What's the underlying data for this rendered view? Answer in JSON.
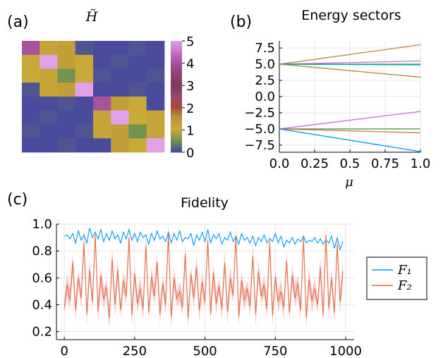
{
  "panels": {
    "a": {
      "label": "(a)",
      "title": "H̃",
      "chart_data": {
        "type": "heatmap",
        "title": "H̃",
        "z": [
          [
            4,
            1,
            1,
            0,
            0,
            0,
            0,
            0
          ],
          [
            1,
            5,
            1,
            1,
            0,
            0,
            0,
            0
          ],
          [
            1,
            1,
            3,
            1,
            0,
            0,
            0,
            0
          ],
          [
            0,
            1,
            1,
            5,
            0,
            0,
            0,
            0
          ],
          [
            0,
            0,
            0,
            0,
            4,
            1,
            1,
            0
          ],
          [
            0,
            0,
            0,
            0,
            1,
            5,
            1,
            1
          ],
          [
            0,
            0,
            0,
            0,
            1,
            1,
            3,
            1
          ],
          [
            0,
            0,
            0,
            0,
            0,
            1,
            1,
            5
          ]
        ],
        "shading": {
          "rows": [
            [
              0,
              3
            ],
            [
              1,
              4
            ],
            [
              0,
              1
            ],
            [
              0,
              0
            ],
            [
              0,
              0
            ],
            [
              0,
              0
            ],
            [
              0,
              1
            ],
            [
              0,
              3
            ]
          ],
          "note_values": [
            0,
            0.08,
            0.15
          ]
        },
        "colorbar": {
          "range": [
            0,
            5
          ],
          "ticks": [
            "0",
            "1",
            "2",
            "3",
            "4",
            "5"
          ]
        }
      }
    },
    "b": {
      "label": "(b)",
      "title": "Energy sectors",
      "chart_data": {
        "type": "line",
        "title": "Energy sectors",
        "xlabel": "μ",
        "xlim": [
          0,
          1
        ],
        "ylim": [
          -8.6,
          8.6
        ],
        "xticks": [
          "0.0",
          "0.25",
          "0.5",
          "0.75",
          "1.0"
        ],
        "yticks": [
          "7.5",
          "5.0",
          "2.5",
          "0.0",
          "−2.5",
          "−5.0",
          "−7.5"
        ],
        "series": [
          {
            "color": "#b8863b",
            "x": [
              0,
              1
            ],
            "y": [
              5,
              8
            ]
          },
          {
            "color": "#c271d2",
            "x": [
              0,
              1
            ],
            "y": [
              5,
              5.5
            ]
          },
          {
            "color": "#3da44d",
            "x": [
              0,
              1
            ],
            "y": [
              5,
              5
            ]
          },
          {
            "color": "#00a9ad",
            "x": [
              0,
              1
            ],
            "y": [
              5,
              4.9
            ]
          },
          {
            "color": "#b8863b",
            "x": [
              0,
              1
            ],
            "y": [
              5,
              3
            ]
          },
          {
            "color": "#c271d2",
            "x": [
              0,
              1
            ],
            "y": [
              -5,
              -2.3
            ]
          },
          {
            "color": "#3da44d",
            "x": [
              0,
              1
            ],
            "y": [
              -5,
              -5
            ]
          },
          {
            "color": "#e26f46",
            "x": [
              0,
              1
            ],
            "y": [
              -5,
              -5.6
            ]
          },
          {
            "color": "#009af9",
            "x": [
              0,
              1
            ],
            "y": [
              -5,
              -8.5
            ]
          }
        ]
      }
    },
    "c": {
      "label": "(c)",
      "title": "Fidelity",
      "chart_data": {
        "type": "line",
        "title": "Fidelity",
        "xlim": [
          -28,
          1030
        ],
        "ylim": [
          0.14,
          1.0
        ],
        "xticks": [
          "0",
          "250",
          "500",
          "750",
          "1000"
        ],
        "yticks": [
          "1.0",
          "0.8",
          "0.6",
          "0.4",
          "0.2"
        ],
        "legend_position": "right",
        "series": [
          {
            "name": "F₁",
            "color": "#009af9",
            "x": [
              0,
              10,
              20,
              30,
              40,
              50,
              60,
              70,
              80,
              90,
              100,
              110,
              120,
              130,
              140,
              150,
              160,
              170,
              180,
              190,
              200,
              210,
              220,
              230,
              240,
              250,
              260,
              270,
              280,
              290,
              300,
              310,
              320,
              330,
              340,
              350,
              360,
              370,
              380,
              390,
              400,
              410,
              420,
              430,
              440,
              450,
              460,
              470,
              480,
              490,
              500,
              510,
              520,
              530,
              540,
              550,
              560,
              570,
              580,
              590,
              600,
              610,
              620,
              630,
              640,
              650,
              660,
              670,
              680,
              690,
              700,
              710,
              720,
              730,
              740,
              750,
              760,
              770,
              780,
              790,
              800,
              810,
              820,
              830,
              840,
              850,
              860,
              870,
              880,
              890,
              900,
              910,
              920,
              930,
              940,
              950,
              960,
              970,
              980,
              990
            ],
            "y": [
              0.91,
              0.92,
              0.89,
              0.93,
              0.86,
              0.95,
              0.88,
              0.92,
              0.86,
              0.97,
              0.9,
              0.94,
              0.89,
              0.96,
              0.87,
              0.93,
              0.88,
              0.95,
              0.89,
              0.92,
              0.86,
              0.94,
              0.89,
              0.96,
              0.88,
              0.93,
              0.87,
              0.94,
              0.9,
              0.92,
              0.85,
              0.93,
              0.88,
              0.95,
              0.89,
              0.91,
              0.87,
              0.94,
              0.86,
              0.93,
              0.88,
              0.95,
              0.87,
              0.9,
              0.89,
              0.93,
              0.84,
              0.92,
              0.88,
              0.94,
              0.87,
              0.96,
              0.86,
              0.92,
              0.89,
              0.93,
              0.85,
              0.9,
              0.88,
              0.94,
              0.87,
              0.91,
              0.85,
              0.93,
              0.88,
              0.9,
              0.86,
              0.91,
              0.84,
              0.9,
              0.87,
              0.92,
              0.86,
              0.89,
              0.87,
              0.93,
              0.86,
              0.91,
              0.83,
              0.88,
              0.86,
              0.9,
              0.85,
              0.89,
              0.87,
              0.91,
              0.86,
              0.88,
              0.87,
              0.9,
              0.86,
              0.89,
              0.85,
              0.88,
              0.86,
              0.91,
              0.82,
              0.9,
              0.81,
              0.87
            ]
          },
          {
            "name": "F₂",
            "color": "#e26f46",
            "x": [
              0,
              10,
              20,
              30,
              40,
              50,
              60,
              70,
              80,
              90,
              100,
              110,
              120,
              130,
              140,
              150,
              160,
              170,
              180,
              190,
              200,
              210,
              220,
              230,
              240,
              250,
              260,
              270,
              280,
              290,
              300,
              310,
              320,
              330,
              340,
              350,
              360,
              370,
              380,
              390,
              400,
              410,
              420,
              430,
              440,
              450,
              460,
              470,
              480,
              490,
              500,
              510,
              520,
              530,
              540,
              550,
              560,
              570,
              580,
              590,
              600,
              610,
              620,
              630,
              640,
              650,
              660,
              670,
              680,
              690,
              700,
              710,
              720,
              730,
              740,
              750,
              760,
              770,
              780,
              790,
              800,
              810,
              820,
              830,
              840,
              850,
              860,
              870,
              880,
              890,
              900,
              910,
              920,
              930,
              940,
              950,
              960,
              970,
              980,
              990
            ],
            "y": [
              0.38,
              0.55,
              0.43,
              0.72,
              0.36,
              0.6,
              0.45,
              0.86,
              0.33,
              0.66,
              0.42,
              0.92,
              0.35,
              0.62,
              0.44,
              0.53,
              0.3,
              0.74,
              0.4,
              0.66,
              0.36,
              0.58,
              0.46,
              0.9,
              0.32,
              0.63,
              0.41,
              0.52,
              0.37,
              0.84,
              0.34,
              0.61,
              0.46,
              0.72,
              0.33,
              0.56,
              0.4,
              0.93,
              0.31,
              0.6,
              0.44,
              0.5,
              0.38,
              0.78,
              0.3,
              0.63,
              0.45,
              0.68,
              0.36,
              0.57,
              0.42,
              0.88,
              0.33,
              0.64,
              0.41,
              0.54,
              0.37,
              0.71,
              0.35,
              0.6,
              0.47,
              0.91,
              0.31,
              0.58,
              0.43,
              0.52,
              0.39,
              0.76,
              0.33,
              0.65,
              0.46,
              0.55,
              0.37,
              0.87,
              0.32,
              0.61,
              0.42,
              0.5,
              0.38,
              0.73,
              0.34,
              0.62,
              0.45,
              0.56,
              0.36,
              0.9,
              0.3,
              0.59,
              0.43,
              0.52,
              0.4,
              0.68,
              0.32,
              0.92,
              0.37,
              0.6,
              0.34,
              0.85,
              0.42,
              0.65
            ]
          }
        ],
        "band": {
          "series": "F₂",
          "color": "#f6b6b6",
          "halfwidth": 0.09
        }
      }
    }
  }
}
